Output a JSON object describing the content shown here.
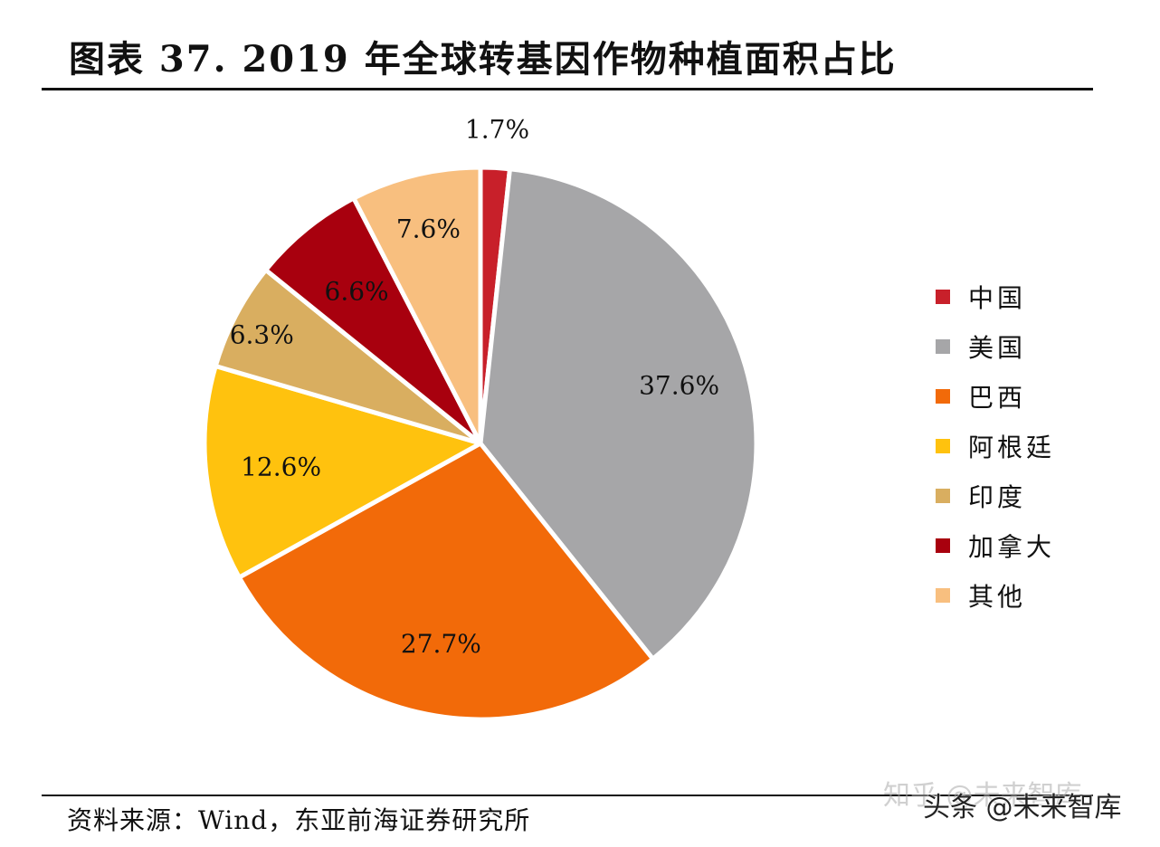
{
  "title": "图表 37. 2019 年全球转基因作物种植面积占比",
  "source": "资料来源：Wind，东亚前海证券研究所",
  "watermark": {
    "back": "知乎 @未来智库",
    "front": "头条 @未来智库"
  },
  "colors": {
    "rule": "#111111",
    "slice_border": "#ffffff"
  },
  "chart_data": {
    "type": "pie",
    "title": "图表 37. 2019 年全球转基因作物种植面积占比",
    "legend_position": "right",
    "slices": [
      {
        "name": "中国",
        "value": 1.7,
        "label": "1.7%",
        "color": "#C8202A"
      },
      {
        "name": "美国",
        "value": 37.6,
        "label": "37.6%",
        "color": "#A6A6A8"
      },
      {
        "name": "巴西",
        "value": 27.7,
        "label": "27.7%",
        "color": "#F26A09"
      },
      {
        "name": "阿根廷",
        "value": 12.6,
        "label": "12.6%",
        "color": "#FFC20E"
      },
      {
        "name": "印度",
        "value": 6.3,
        "label": "6.3%",
        "color": "#D9AE60"
      },
      {
        "name": "加拿大",
        "value": 6.6,
        "label": "6.6%",
        "color": "#A8000E"
      },
      {
        "name": "其他",
        "value": 7.6,
        "label": "7.6%",
        "color": "#F8BF7F"
      }
    ]
  }
}
